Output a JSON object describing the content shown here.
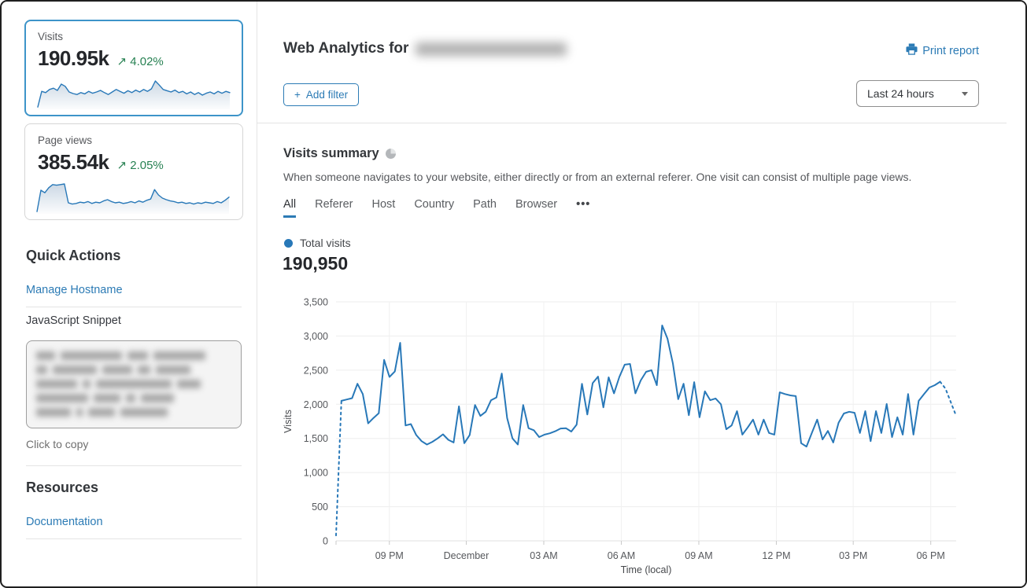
{
  "colors": {
    "accent_blue": "#2c7bb5",
    "chart_line": "#2878b8",
    "positive_green": "#278152",
    "selected_card_border": "#3d94c9",
    "divider": "#e4e4e4",
    "grid_line": "#ededed",
    "text_primary": "#36393f",
    "text_secondary": "#56585c"
  },
  "sidebar": {
    "stat_cards": [
      {
        "label": "Visits",
        "value": "190.95k",
        "delta_arrow": "↗",
        "delta": "4.02%",
        "selected": true,
        "sparkline": [
          2,
          52,
          48,
          58,
          62,
          55,
          75,
          68,
          50,
          45,
          42,
          48,
          44,
          52,
          46,
          50,
          55,
          48,
          42,
          50,
          58,
          52,
          46,
          54,
          48,
          56,
          50,
          58,
          52,
          60,
          85,
          72,
          58,
          54,
          50,
          56,
          48,
          52,
          44,
          50,
          42,
          48,
          40,
          46,
          50,
          44,
          52,
          46,
          52,
          48
        ]
      },
      {
        "label": "Page views",
        "value": "385.54k",
        "delta_arrow": "↗",
        "delta": "2.05%",
        "selected": false,
        "sparkline": [
          2,
          70,
          62,
          78,
          88,
          86,
          88,
          90,
          30,
          26,
          28,
          32,
          30,
          34,
          28,
          32,
          30,
          36,
          40,
          34,
          30,
          32,
          28,
          30,
          34,
          30,
          36,
          32,
          38,
          42,
          72,
          55,
          45,
          40,
          36,
          34,
          30,
          32,
          28,
          30,
          26,
          30,
          28,
          32,
          30,
          28,
          34,
          30,
          38,
          48
        ]
      }
    ],
    "quick_actions": {
      "title": "Quick Actions",
      "manage_hostname": "Manage Hostname",
      "snippet_label": "JavaScript Snippet",
      "click_to_copy": "Click to copy"
    },
    "resources": {
      "title": "Resources",
      "documentation": "Documentation"
    }
  },
  "header": {
    "title": "Web Analytics for",
    "print_report": "Print report",
    "add_filter_plus": "+",
    "add_filter": "Add filter",
    "time_range": "Last 24 hours"
  },
  "summary": {
    "title": "Visits summary",
    "description": "When someone navigates to your website, either directly or from an external referer. One visit can consist of multiple page views.",
    "tabs": [
      "All",
      "Referer",
      "Host",
      "Country",
      "Path",
      "Browser"
    ],
    "active_tab": "All",
    "more_tabs": "•••",
    "legend_label": "Total visits",
    "total": "190,950"
  },
  "chart_data": {
    "type": "line",
    "title": "Total visits",
    "xlabel": "Time (local)",
    "ylabel": "Visits",
    "ylim": [
      0,
      3500
    ],
    "y_ticks": [
      0,
      500,
      1000,
      1500,
      2000,
      2500,
      3000,
      3500
    ],
    "x_ticks": [
      {
        "label": "09 PM",
        "f": 0.086
      },
      {
        "label": "December",
        "f": 0.21
      },
      {
        "label": "03 AM",
        "f": 0.335
      },
      {
        "label": "06 AM",
        "f": 0.46
      },
      {
        "label": "09 AM",
        "f": 0.585
      },
      {
        "label": "12 PM",
        "f": 0.71
      },
      {
        "label": "03 PM",
        "f": 0.834
      },
      {
        "label": "06 PM",
        "f": 0.959
      }
    ],
    "grid": true,
    "legend_position": "top-left",
    "series": [
      {
        "name": "Total visits",
        "dashed_head_points": 2,
        "dashed_tail_points": 4,
        "values": [
          80,
          2050,
          2070,
          2090,
          2300,
          2150,
          1720,
          1800,
          1870,
          2650,
          2400,
          2480,
          2900,
          1690,
          1710,
          1550,
          1460,
          1410,
          1450,
          1500,
          1560,
          1480,
          1440,
          1970,
          1430,
          1550,
          1990,
          1830,
          1890,
          2060,
          2100,
          2450,
          1800,
          1500,
          1410,
          1990,
          1650,
          1620,
          1520,
          1555,
          1575,
          1605,
          1645,
          1650,
          1600,
          1700,
          2300,
          1850,
          2310,
          2405,
          1955,
          2395,
          2160,
          2400,
          2580,
          2590,
          2160,
          2350,
          2475,
          2500,
          2280,
          3155,
          2960,
          2600,
          2075,
          2300,
          1840,
          2325,
          1810,
          2190,
          2060,
          2085,
          2000,
          1635,
          1690,
          1900,
          1555,
          1660,
          1775,
          1555,
          1775,
          1580,
          1555,
          2175,
          2150,
          2130,
          2120,
          1430,
          1380,
          1580,
          1775,
          1485,
          1610,
          1440,
          1730,
          1865,
          1890,
          1875,
          1580,
          1900,
          1460,
          1900,
          1580,
          2005,
          1520,
          1810,
          1555,
          2150,
          1555,
          2050,
          2150,
          2245,
          2280,
          2330,
          2230,
          2030,
          1830
        ]
      }
    ]
  }
}
